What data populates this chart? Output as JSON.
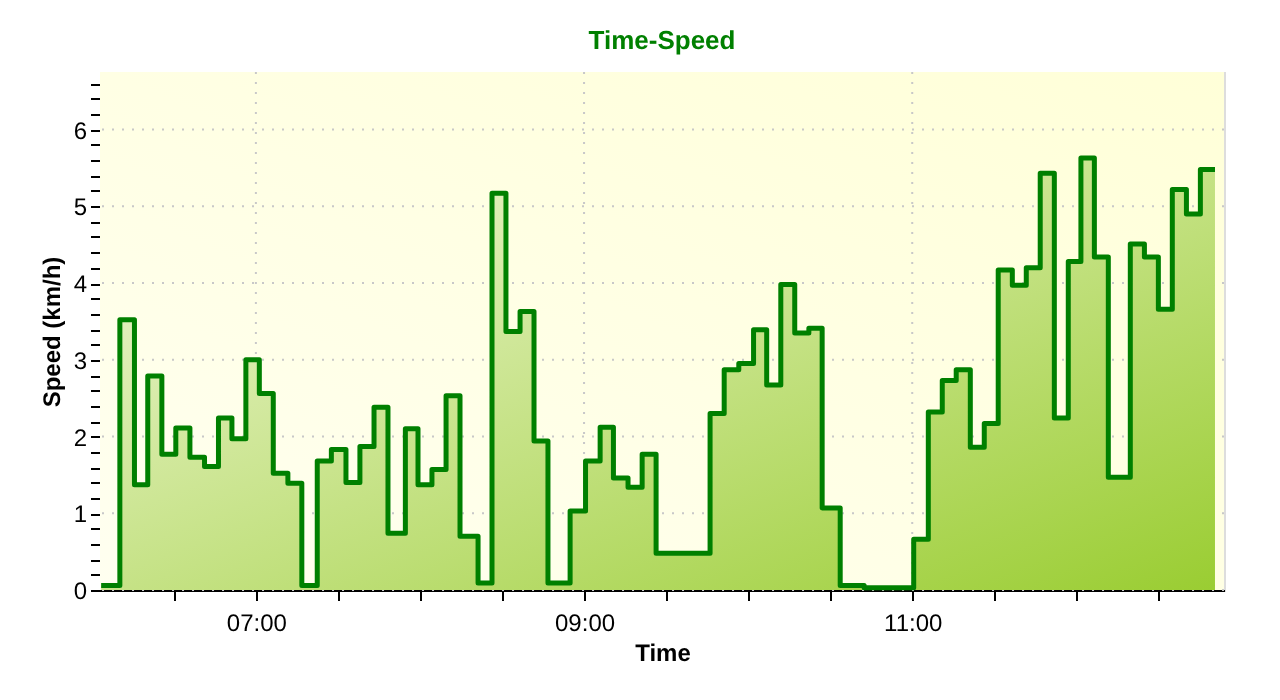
{
  "chart_data": {
    "type": "area",
    "title": "Time-Speed",
    "xlabel": "Time",
    "ylabel": "Speed (km/h)",
    "xlim": [
      6.05,
      12.9
    ],
    "ylim": [
      0,
      6.75
    ],
    "xticks": [
      {
        "value": 6.5,
        "label": null
      },
      {
        "value": 7,
        "label": "07:00"
      },
      {
        "value": 7.5,
        "label": null
      },
      {
        "value": 8,
        "label": null
      },
      {
        "value": 8.5,
        "label": null
      },
      {
        "value": 9,
        "label": "09:00"
      },
      {
        "value": 9.5,
        "label": null
      },
      {
        "value": 10,
        "label": null
      },
      {
        "value": 10.5,
        "label": null
      },
      {
        "value": 11,
        "label": "11:00"
      },
      {
        "value": 11.5,
        "label": null
      },
      {
        "value": 12,
        "label": null
      },
      {
        "value": 12.5,
        "label": null
      }
    ],
    "yticks": [
      0,
      {
        "value": 0.2,
        "label": null
      },
      {
        "value": 0.4,
        "label": null
      },
      {
        "value": 0.6,
        "label": null
      },
      {
        "value": 0.8,
        "label": null
      },
      1,
      {
        "value": 1.2,
        "label": null
      },
      {
        "value": 1.4,
        "label": null
      },
      {
        "value": 1.6,
        "label": null
      },
      {
        "value": 1.8,
        "label": null
      },
      2,
      {
        "value": 2.2,
        "label": null
      },
      {
        "value": 2.4,
        "label": null
      },
      {
        "value": 2.6,
        "label": null
      },
      {
        "value": 2.8,
        "label": null
      },
      3,
      {
        "value": 3.2,
        "label": null
      },
      {
        "value": 3.4,
        "label": null
      },
      {
        "value": 3.6,
        "label": null
      },
      {
        "value": 3.8,
        "label": null
      },
      4,
      {
        "value": 4.2,
        "label": null
      },
      {
        "value": 4.4,
        "label": null
      },
      {
        "value": 4.6,
        "label": null
      },
      {
        "value": 4.8,
        "label": null
      },
      5,
      {
        "value": 5.2,
        "label": null
      },
      {
        "value": 5.4,
        "label": null
      },
      {
        "value": 5.6,
        "label": null
      },
      {
        "value": 5.8,
        "label": null
      },
      6,
      {
        "value": 6.2,
        "label": null
      },
      {
        "value": 6.4,
        "label": null
      },
      {
        "value": 6.6,
        "label": null
      }
    ],
    "grid": true,
    "marker": "none",
    "line_style": "solid",
    "series": [
      {
        "color": "#008000",
        "x": [
          6.057,
          6.171,
          6.171,
          6.26,
          6.26,
          6.341,
          6.341,
          6.427,
          6.427,
          6.512,
          6.512,
          6.598,
          6.598,
          6.687,
          6.687,
          6.772,
          6.772,
          6.854,
          6.854,
          6.939,
          6.939,
          7.021,
          7.021,
          7.106,
          7.106,
          7.195,
          7.195,
          7.28,
          7.28,
          7.374,
          7.374,
          7.46,
          7.46,
          7.549,
          7.549,
          7.634,
          7.634,
          7.72,
          7.72,
          7.805,
          7.805,
          7.911,
          7.911,
          7.988,
          7.988,
          8.073,
          8.073,
          8.159,
          8.159,
          8.244,
          8.244,
          8.354,
          8.354,
          8.439,
          8.439,
          8.524,
          8.524,
          8.61,
          8.61,
          8.695,
          8.695,
          8.78,
          8.78,
          8.915,
          8.915,
          9.009,
          9.009,
          9.098,
          9.098,
          9.179,
          9.179,
          9.268,
          9.268,
          9.354,
          9.354,
          9.439,
          9.439,
          9.768,
          9.768,
          9.854,
          9.854,
          9.943,
          9.943,
          10.033,
          10.033,
          10.113,
          10.113,
          10.199,
          10.199,
          10.284,
          10.284,
          10.37,
          10.37,
          10.451,
          10.451,
          10.561,
          10.561,
          10.707,
          10.707,
          11.009,
          11.009,
          11.098,
          11.098,
          11.183,
          11.183,
          11.268,
          11.268,
          11.354,
          11.354,
          11.439,
          11.439,
          11.524,
          11.524,
          11.61,
          11.61,
          11.695,
          11.695,
          11.78,
          11.78,
          11.866,
          11.866,
          11.951,
          11.951,
          12.028,
          12.028,
          12.11,
          12.11,
          12.195,
          12.195,
          12.329,
          12.329,
          12.415,
          12.415,
          12.5,
          12.5,
          12.585,
          12.585,
          12.671,
          12.671,
          12.756,
          12.756,
          12.845
        ],
        "values": [
          0.06,
          0.06,
          3.52,
          3.52,
          1.37,
          1.37,
          2.79,
          2.79,
          1.77,
          1.77,
          2.11,
          2.11,
          1.73,
          1.73,
          1.61,
          1.61,
          2.24,
          2.24,
          1.97,
          1.97,
          3.0,
          3.0,
          2.56,
          2.56,
          1.52,
          1.52,
          1.39,
          1.39,
          0.06,
          0.06,
          1.68,
          1.68,
          1.83,
          1.83,
          1.4,
          1.4,
          1.87,
          1.87,
          2.38,
          2.38,
          0.74,
          0.74,
          2.1,
          2.1,
          1.37,
          1.37,
          1.57,
          1.57,
          2.53,
          2.53,
          0.7,
          0.7,
          0.09,
          0.09,
          5.17,
          5.17,
          3.37,
          3.37,
          3.63,
          3.63,
          1.94,
          1.94,
          0.09,
          0.09,
          1.03,
          1.03,
          1.68,
          1.68,
          2.12,
          2.12,
          1.46,
          1.46,
          1.34,
          1.34,
          1.77,
          1.77,
          0.48,
          0.48,
          2.3,
          2.3,
          2.87,
          2.87,
          2.95,
          2.95,
          3.39,
          3.39,
          2.67,
          2.67,
          3.98,
          3.98,
          3.35,
          3.35,
          3.41,
          3.41,
          1.07,
          1.07,
          0.06,
          0.06,
          0.03,
          0.03,
          0.66,
          0.66,
          2.32,
          2.32,
          2.73,
          2.73,
          2.87,
          2.87,
          1.86,
          1.86,
          2.17,
          2.17,
          4.17,
          4.17,
          3.97,
          3.97,
          4.2,
          4.2,
          5.43,
          5.43,
          2.24,
          2.24,
          4.28,
          4.28,
          5.63,
          5.63,
          4.34,
          4.34,
          1.47,
          1.47,
          4.51,
          4.51,
          4.34,
          4.34,
          3.66,
          3.66,
          5.22,
          5.22,
          4.9,
          4.9,
          5.48,
          5.48
        ]
      }
    ]
  }
}
